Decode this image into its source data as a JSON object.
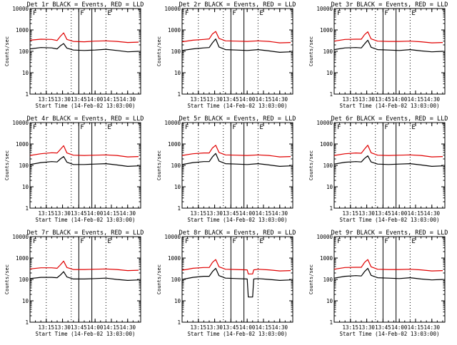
{
  "figure": {
    "ylabel": "Counts/sec",
    "xlabel": "Start Time (14-Feb-02 13:03:00)",
    "x_ticks": [
      "13:15",
      "13:30",
      "13:45",
      "14:00",
      "14:15",
      "14:30"
    ],
    "y_ticks": [
      "1",
      "10",
      "100",
      "1000",
      "10000"
    ],
    "marker_labels": [
      "F",
      "F",
      "E"
    ],
    "colors": {
      "events": "#000000",
      "lld": "#e00000",
      "background": "#ffffff"
    }
  },
  "chart_data": [
    {
      "type": "line",
      "title": "Det 1r BLACK = Events, RED = LLD",
      "xlabel": "Start Time (14-Feb-02 13:03:00)",
      "ylabel": "Counts/sec",
      "y_scale": "log",
      "ylim": [
        1,
        10000
      ],
      "x_ticks": [
        "13:15",
        "13:30",
        "13:45",
        "14:00",
        "14:15",
        "14:30"
      ],
      "y_ticks": [
        "1",
        "10",
        "100",
        "1000",
        "10000"
      ],
      "x": [
        "13:00",
        "13:10",
        "13:20",
        "13:25",
        "13:28",
        "13:31",
        "13:34",
        "13:40",
        "13:50",
        "14:00",
        "14:10",
        "14:20",
        "14:30",
        "14:40"
      ],
      "series": [
        {
          "name": "Events",
          "color": "#000000",
          "values": [
            130,
            150,
            145,
            130,
            180,
            230,
            140,
            115,
            110,
            115,
            125,
            110,
            95,
            100
          ]
        },
        {
          "name": "LLD",
          "color": "#e00000",
          "values": [
            330,
            370,
            360,
            320,
            500,
            730,
            360,
            290,
            280,
            300,
            310,
            290,
            260,
            270
          ]
        }
      ],
      "dotted_lines": [
        "13:15",
        "13:38",
        "14:10"
      ],
      "solid_lines": [
        "13:45",
        "13:57"
      ],
      "annotations": [
        "F",
        "F",
        "E"
      ],
      "grid": false
    },
    {
      "type": "line",
      "title": "Det 2r BLACK = Events, RED = LLD",
      "xlabel": "Start Time (14-Feb-02 13:03:00)",
      "ylabel": "Counts/sec",
      "y_scale": "log",
      "ylim": [
        1,
        10000
      ],
      "x_ticks": [
        "13:15",
        "13:30",
        "13:45",
        "14:00",
        "14:15",
        "14:30"
      ],
      "y_ticks": [
        "1",
        "10",
        "100",
        "1000",
        "10000"
      ],
      "x": [
        "13:00",
        "13:10",
        "13:20",
        "13:25",
        "13:28",
        "13:31",
        "13:34",
        "13:40",
        "13:50",
        "14:00",
        "14:10",
        "14:20",
        "14:30",
        "14:40"
      ],
      "series": [
        {
          "name": "Events",
          "color": "#000000",
          "values": [
            110,
            130,
            145,
            150,
            250,
            380,
            160,
            120,
            115,
            110,
            120,
            105,
            90,
            95
          ]
        },
        {
          "name": "LLD",
          "color": "#e00000",
          "values": [
            280,
            330,
            360,
            380,
            650,
            850,
            400,
            310,
            300,
            290,
            310,
            290,
            250,
            260
          ]
        }
      ],
      "dotted_lines": [
        "13:15",
        "13:38",
        "14:10"
      ],
      "solid_lines": [
        "13:45",
        "13:57"
      ],
      "annotations": [
        "F",
        "F",
        "E"
      ],
      "grid": false
    },
    {
      "type": "line",
      "title": "Det 3r BLACK = Events, RED = LLD",
      "xlabel": "Start Time (14-Feb-02 13:03:00)",
      "ylabel": "Counts/sec",
      "y_scale": "log",
      "ylim": [
        1,
        10000
      ],
      "x_ticks": [
        "13:15",
        "13:30",
        "13:45",
        "14:00",
        "14:15",
        "14:30"
      ],
      "y_ticks": [
        "1",
        "10",
        "100",
        "1000",
        "10000"
      ],
      "x": [
        "13:00",
        "13:10",
        "13:20",
        "13:25",
        "13:28",
        "13:31",
        "13:34",
        "13:40",
        "13:50",
        "14:00",
        "14:10",
        "14:20",
        "14:30",
        "14:40"
      ],
      "series": [
        {
          "name": "Events",
          "color": "#000000",
          "values": [
            120,
            145,
            150,
            145,
            220,
            330,
            155,
            120,
            115,
            110,
            120,
            105,
            95,
            100
          ]
        },
        {
          "name": "LLD",
          "color": "#e00000",
          "values": [
            300,
            360,
            370,
            370,
            600,
            820,
            380,
            300,
            290,
            290,
            300,
            280,
            250,
            260
          ]
        }
      ],
      "dotted_lines": [
        "13:15",
        "13:38",
        "14:10"
      ],
      "solid_lines": [
        "13:45",
        "13:57"
      ],
      "annotations": [
        "F",
        "F",
        "E"
      ],
      "grid": false
    },
    {
      "type": "line",
      "title": "Det 4r BLACK = Events, RED = LLD",
      "xlabel": "Start Time (14-Feb-02 13:03:00)",
      "ylabel": "Counts/sec",
      "y_scale": "log",
      "ylim": [
        1,
        10000
      ],
      "x_ticks": [
        "13:15",
        "13:30",
        "13:45",
        "14:00",
        "14:15",
        "14:30"
      ],
      "y_ticks": [
        "1",
        "10",
        "100",
        "1000",
        "10000"
      ],
      "x": [
        "13:00",
        "13:10",
        "13:20",
        "13:25",
        "13:28",
        "13:31",
        "13:34",
        "13:40",
        "13:50",
        "14:00",
        "14:10",
        "14:20",
        "14:30",
        "14:40"
      ],
      "series": [
        {
          "name": "Events",
          "color": "#000000",
          "values": [
            110,
            135,
            150,
            145,
            200,
            260,
            140,
            110,
            110,
            115,
            120,
            105,
            90,
            95
          ]
        },
        {
          "name": "LLD",
          "color": "#e00000",
          "values": [
            290,
            350,
            390,
            380,
            560,
            830,
            380,
            300,
            290,
            300,
            310,
            290,
            250,
            260
          ]
        }
      ],
      "dotted_lines": [
        "13:15",
        "13:38",
        "14:10"
      ],
      "solid_lines": [
        "13:45",
        "13:57"
      ],
      "annotations": [
        "F",
        "F",
        "E"
      ],
      "grid": false
    },
    {
      "type": "line",
      "title": "Det 5r BLACK = Events, RED = LLD",
      "xlabel": "Start Time (14-Feb-02 13:03:00)",
      "ylabel": "Counts/sec",
      "y_scale": "log",
      "ylim": [
        1,
        10000
      ],
      "x_ticks": [
        "13:15",
        "13:30",
        "13:45",
        "14:00",
        "14:15",
        "14:30"
      ],
      "y_ticks": [
        "1",
        "10",
        "100",
        "1000",
        "10000"
      ],
      "x": [
        "13:00",
        "13:10",
        "13:20",
        "13:25",
        "13:28",
        "13:31",
        "13:34",
        "13:40",
        "13:50",
        "14:00",
        "14:10",
        "14:20",
        "14:30",
        "14:40"
      ],
      "series": [
        {
          "name": "Events",
          "color": "#000000",
          "values": [
            110,
            135,
            150,
            150,
            250,
            360,
            160,
            120,
            115,
            110,
            120,
            105,
            90,
            95
          ]
        },
        {
          "name": "LLD",
          "color": "#e00000",
          "values": [
            290,
            350,
            380,
            380,
            650,
            870,
            400,
            310,
            300,
            290,
            310,
            290,
            250,
            260
          ]
        }
      ],
      "dotted_lines": [
        "13:15",
        "13:38",
        "14:10"
      ],
      "solid_lines": [
        "13:45",
        "13:57"
      ],
      "annotations": [
        "F",
        "F",
        "E"
      ],
      "grid": false
    },
    {
      "type": "line",
      "title": "Det 6r BLACK = Events, RED = LLD",
      "xlabel": "Start Time (14-Feb-02 13:03:00)",
      "ylabel": "Counts/sec",
      "y_scale": "log",
      "ylim": [
        1,
        10000
      ],
      "x_ticks": [
        "13:15",
        "13:30",
        "13:45",
        "14:00",
        "14:15",
        "14:30"
      ],
      "y_ticks": [
        "1",
        "10",
        "100",
        "1000",
        "10000"
      ],
      "x": [
        "13:00",
        "13:10",
        "13:20",
        "13:25",
        "13:28",
        "13:31",
        "13:34",
        "13:40",
        "13:50",
        "14:00",
        "14:10",
        "14:20",
        "14:30",
        "14:40"
      ],
      "series": [
        {
          "name": "Events",
          "color": "#000000",
          "values": [
            115,
            140,
            150,
            145,
            210,
            280,
            145,
            115,
            110,
            115,
            120,
            105,
            90,
            95
          ]
        },
        {
          "name": "LLD",
          "color": "#e00000",
          "values": [
            290,
            350,
            380,
            370,
            580,
            880,
            390,
            300,
            290,
            300,
            310,
            290,
            250,
            260
          ]
        }
      ],
      "dotted_lines": [
        "13:15",
        "13:38",
        "14:10"
      ],
      "solid_lines": [
        "13:45",
        "13:57"
      ],
      "annotations": [
        "F",
        "F",
        "E"
      ],
      "grid": false
    },
    {
      "type": "line",
      "title": "Det 7r BLACK = Events, RED = LLD",
      "xlabel": "Start Time (14-Feb-02 13:03:00)",
      "ylabel": "Counts/sec",
      "y_scale": "log",
      "ylim": [
        1,
        10000
      ],
      "x_ticks": [
        "13:15",
        "13:30",
        "13:45",
        "14:00",
        "14:15",
        "14:30"
      ],
      "y_ticks": [
        "1",
        "10",
        "100",
        "1000",
        "10000"
      ],
      "x": [
        "13:00",
        "13:10",
        "13:20",
        "13:25",
        "13:28",
        "13:31",
        "13:34",
        "13:40",
        "13:50",
        "14:00",
        "14:10",
        "14:20",
        "14:30",
        "14:40"
      ],
      "series": [
        {
          "name": "Events",
          "color": "#000000",
          "values": [
            110,
            125,
            125,
            120,
            160,
            230,
            130,
            105,
            105,
            110,
            115,
            100,
            90,
            95
          ]
        },
        {
          "name": "LLD",
          "color": "#e00000",
          "values": [
            310,
            350,
            350,
            330,
            480,
            720,
            360,
            290,
            290,
            300,
            310,
            290,
            260,
            270
          ]
        }
      ],
      "dotted_lines": [
        "13:15",
        "13:38",
        "14:10"
      ],
      "solid_lines": [
        "13:45",
        "13:57"
      ],
      "annotations": [
        "F",
        "F",
        "E"
      ],
      "grid": false
    },
    {
      "type": "line",
      "title": "Det 8r BLACK = Events, RED = LLD",
      "xlabel": "Start Time (14-Feb-02 13:03:00)",
      "ylabel": "Counts/sec",
      "y_scale": "log",
      "ylim": [
        1,
        10000
      ],
      "x_ticks": [
        "13:15",
        "13:30",
        "13:45",
        "14:00",
        "14:15",
        "14:30"
      ],
      "y_ticks": [
        "1",
        "10",
        "100",
        "1000",
        "10000"
      ],
      "x": [
        "13:00",
        "13:10",
        "13:20",
        "13:25",
        "13:28",
        "13:31",
        "13:34",
        "13:40",
        "13:50",
        "14:00",
        "14:01",
        "14:05",
        "14:06",
        "14:10",
        "14:20",
        "14:30",
        "14:40"
      ],
      "series": [
        {
          "name": "Events",
          "color": "#000000",
          "values": [
            100,
            125,
            140,
            140,
            230,
            330,
            150,
            115,
            110,
            105,
            15,
            15,
            105,
            110,
            100,
            90,
            95
          ]
        },
        {
          "name": "LLD",
          "color": "#e00000",
          "values": [
            270,
            330,
            360,
            360,
            620,
            850,
            390,
            300,
            290,
            280,
            180,
            180,
            280,
            300,
            280,
            250,
            260
          ]
        }
      ],
      "dotted_lines": [
        "13:15",
        "13:38",
        "14:10"
      ],
      "solid_lines": [
        "13:45",
        "13:57"
      ],
      "annotations": [
        "F",
        "F",
        "E"
      ],
      "grid": false
    },
    {
      "type": "line",
      "title": "Det 9r BLACK = Events, RED = LLD",
      "xlabel": "Start Time (14-Feb-02 13:03:00)",
      "ylabel": "Counts/sec",
      "y_scale": "log",
      "ylim": [
        1,
        10000
      ],
      "x_ticks": [
        "13:15",
        "13:30",
        "13:45",
        "14:00",
        "14:15",
        "14:30"
      ],
      "y_ticks": [
        "1",
        "10",
        "100",
        "1000",
        "10000"
      ],
      "x": [
        "13:00",
        "13:10",
        "13:20",
        "13:25",
        "13:28",
        "13:31",
        "13:34",
        "13:40",
        "13:50",
        "14:00",
        "14:10",
        "14:20",
        "14:30",
        "14:40"
      ],
      "series": [
        {
          "name": "Events",
          "color": "#000000",
          "values": [
            115,
            140,
            150,
            145,
            230,
            330,
            155,
            120,
            115,
            110,
            120,
            105,
            95,
            100
          ]
        },
        {
          "name": "LLD",
          "color": "#e00000",
          "values": [
            300,
            360,
            370,
            370,
            620,
            850,
            390,
            300,
            290,
            290,
            300,
            280,
            250,
            260
          ]
        }
      ],
      "dotted_lines": [
        "13:15",
        "13:38",
        "14:10"
      ],
      "solid_lines": [
        "13:45",
        "13:57"
      ],
      "annotations": [
        "F",
        "F",
        "E"
      ],
      "grid": false
    }
  ]
}
